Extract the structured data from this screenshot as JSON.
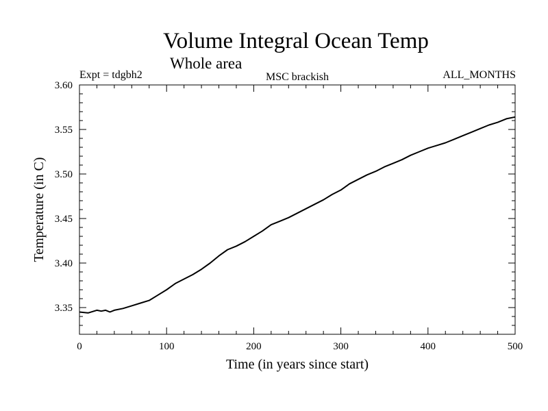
{
  "chart_data": {
    "type": "line",
    "title": "Volume Integral Ocean Temp",
    "subtitle": "Whole area",
    "annotations": {
      "left": "Expt = tdgbh2",
      "center": "MSC brackish",
      "right": "ALL_MONTHS"
    },
    "xlabel": "Time (in years since start)",
    "ylabel": "Temperature (in C)",
    "xlim": [
      0,
      500
    ],
    "ylim": [
      3.32,
      3.6
    ],
    "xticks": [
      0,
      100,
      200,
      300,
      400,
      500
    ],
    "yticks": [
      3.35,
      3.4,
      3.45,
      3.5,
      3.55,
      3.6
    ],
    "xtick_labels": [
      "0",
      "100",
      "200",
      "300",
      "400",
      "500"
    ],
    "ytick_labels": [
      "3.35",
      "3.40",
      "3.45",
      "3.50",
      "3.55",
      "3.60"
    ],
    "grid": false,
    "series": [
      {
        "color": "#000000",
        "x": [
          0,
          10,
          20,
          25,
          30,
          35,
          40,
          50,
          60,
          70,
          80,
          90,
          100,
          110,
          120,
          130,
          140,
          150,
          160,
          170,
          180,
          190,
          200,
          210,
          220,
          230,
          240,
          250,
          260,
          270,
          280,
          290,
          300,
          310,
          320,
          330,
          340,
          350,
          360,
          370,
          380,
          390,
          400,
          410,
          420,
          430,
          440,
          450,
          460,
          470,
          480,
          490,
          500
        ],
        "y": [
          3.345,
          3.344,
          3.347,
          3.346,
          3.347,
          3.345,
          3.347,
          3.349,
          3.352,
          3.355,
          3.358,
          3.364,
          3.37,
          3.377,
          3.382,
          3.387,
          3.393,
          3.4,
          3.408,
          3.415,
          3.419,
          3.424,
          3.43,
          3.436,
          3.443,
          3.447,
          3.451,
          3.456,
          3.461,
          3.466,
          3.471,
          3.477,
          3.482,
          3.489,
          3.494,
          3.499,
          3.503,
          3.508,
          3.512,
          3.516,
          3.521,
          3.525,
          3.529,
          3.532,
          3.535,
          3.539,
          3.543,
          3.547,
          3.551,
          3.555,
          3.558,
          3.562,
          3.564
        ]
      }
    ]
  }
}
